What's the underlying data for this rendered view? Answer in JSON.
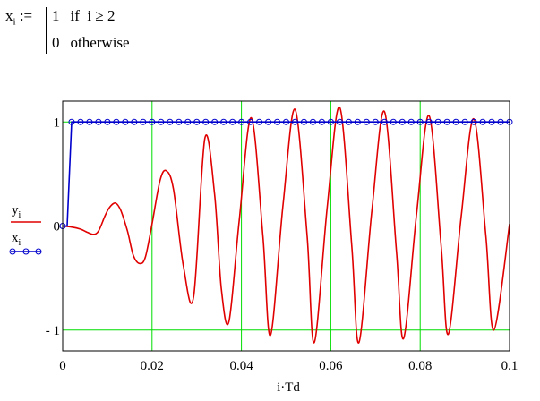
{
  "definition": {
    "lhs_var": "x",
    "lhs_sub": "i",
    "assign_op": ":=",
    "case1_value": "1",
    "case1_keyword": "if",
    "case1_condition": "i ≥ 2",
    "case2_value": "0",
    "case2_keyword": "otherwise"
  },
  "chart_data": {
    "type": "line",
    "xlabel": "i·Td",
    "xlim": [
      0,
      0.1
    ],
    "ylim": [
      -1.2,
      1.2
    ],
    "x_ticks": [
      0,
      0.02,
      0.04,
      0.06,
      0.08,
      0.1
    ],
    "x_tick_labels": [
      "0",
      "0.02",
      "0.04",
      "0.06",
      "0.08",
      "0.1"
    ],
    "y_ticks": [
      1,
      0,
      -1
    ],
    "y_tick_labels": [
      "1",
      "0",
      "- 1"
    ],
    "grid": true,
    "grid_color": "#00dd00",
    "legend_placement": "left",
    "series": [
      {
        "name": "y",
        "name_sub": "i",
        "color": "#e00000",
        "style": "line",
        "x": [
          0,
          0.002,
          0.004,
          0.0055,
          0.0068,
          0.008,
          0.0095,
          0.0105,
          0.0118,
          0.013,
          0.0145,
          0.0158,
          0.0172,
          0.0185,
          0.02,
          0.0218,
          0.0232,
          0.0248,
          0.027,
          0.0293,
          0.0318,
          0.034,
          0.0355,
          0.0372,
          0.0395,
          0.0422,
          0.0448,
          0.0465,
          0.0493,
          0.052,
          0.0547,
          0.0563,
          0.0592,
          0.062,
          0.0647,
          0.0663,
          0.0692,
          0.072,
          0.0747,
          0.0763,
          0.0792,
          0.082,
          0.0847,
          0.0863,
          0.0892,
          0.092,
          0.0947,
          0.0965,
          0.1
        ],
        "y": [
          0,
          -0.01,
          -0.03,
          -0.06,
          -0.08,
          -0.05,
          0.1,
          0.18,
          0.22,
          0.15,
          -0.05,
          -0.28,
          -0.36,
          -0.3,
          0.02,
          0.44,
          0.53,
          0.35,
          -0.38,
          -0.68,
          0.84,
          0.3,
          -0.6,
          -0.92,
          0.05,
          1.04,
          -0.1,
          -1.05,
          0.2,
          1.12,
          -0.1,
          -1.12,
          0.18,
          1.14,
          -0.2,
          -1.12,
          0.15,
          1.1,
          -0.25,
          -1.08,
          0.12,
          1.06,
          -0.2,
          -1.04,
          0.1,
          1.03,
          -0.1,
          -1.0,
          0.02
        ]
      },
      {
        "name": "x",
        "name_sub": "i",
        "color": "#0000cc",
        "style": "line+circle-markers",
        "step_index": 2,
        "sample_step": 0.001,
        "x_range": [
          0,
          0.1
        ]
      }
    ]
  }
}
